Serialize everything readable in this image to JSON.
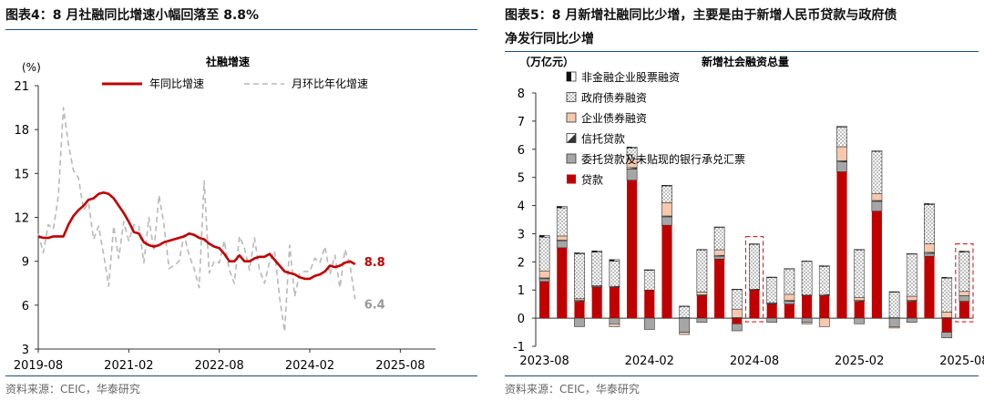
{
  "left": {
    "title": "图表4：8 月社融同比增速小幅回落至 8.8%",
    "source": "资料来源：CEIC，华泰研究"
  },
  "right": {
    "title_line1": "图表5：8 月新增社融同比少增，主要是由于新增人民币贷款与政府债",
    "title_line2": "净发行同比少增",
    "source": "资料来源：CEIC，华泰研究"
  },
  "chart_data": [
    {
      "type": "line",
      "title": "社融增速",
      "ylabel": "(%)",
      "ylim": [
        3,
        21
      ],
      "yticks": [
        3,
        6,
        9,
        12,
        15,
        18,
        21
      ],
      "xlim": [
        0,
        79
      ],
      "xticks": [
        {
          "i": 0,
          "label": "2019-08"
        },
        {
          "i": 18,
          "label": "2021-02"
        },
        {
          "i": 36,
          "label": "2022-08"
        },
        {
          "i": 54,
          "label": "2024-02"
        },
        {
          "i": 72,
          "label": "2025-08"
        }
      ],
      "series": [
        {
          "name": "年同比增速",
          "color": "#c00000",
          "style": "solid",
          "end_label": "8.8",
          "values": [
            10.7,
            10.6,
            10.6,
            10.7,
            10.7,
            10.7,
            11.5,
            12.1,
            12.5,
            12.8,
            13.2,
            13.3,
            13.6,
            13.7,
            13.6,
            13.3,
            12.8,
            12.3,
            11.7,
            11.0,
            10.9,
            10.3,
            10.1,
            10.0,
            10.1,
            10.3,
            10.4,
            10.5,
            10.6,
            10.7,
            10.9,
            10.8,
            10.6,
            10.5,
            10.2,
            10.0,
            9.9,
            9.5,
            9.0,
            9.0,
            9.4,
            9.0,
            9.0,
            9.2,
            9.3,
            9.3,
            9.5,
            9.1,
            8.7,
            8.3,
            8.2,
            8.1,
            7.9,
            7.8,
            7.8,
            8.0,
            8.1,
            8.3,
            8.7,
            8.6,
            8.7,
            8.9,
            9.0,
            8.8
          ]
        },
        {
          "name": "月环比年化增速",
          "color": "#b8b8b8",
          "style": "dashed",
          "end_label": "6.4",
          "values": [
            10.9,
            9.6,
            11.5,
            11.2,
            13.5,
            19.5,
            17.0,
            15.2,
            14.7,
            12.5,
            13.0,
            10.5,
            11.4,
            9.5,
            7.3,
            11.4,
            9.2,
            11.7,
            10.4,
            11.5,
            11.4,
            8.9,
            12.0,
            9.7,
            13.5,
            11.5,
            8.5,
            8.7,
            9.0,
            10.8,
            9.4,
            8.5,
            7.2,
            14.5,
            8.2,
            9.0,
            8.9,
            10.4,
            8.4,
            7.5,
            10.7,
            9.9,
            8.4,
            10.6,
            8.4,
            7.5,
            9.0,
            9.7,
            6.5,
            4.2,
            10.1,
            6.6,
            8.2,
            8.3,
            8.3,
            9.2,
            8.9,
            10.0,
            8.1,
            9.4,
            7.2,
            9.8,
            8.7,
            6.4
          ]
        }
      ]
    },
    {
      "type": "stacked_bar",
      "title": "新增社会融资总量",
      "ylabel": "（万亿元）",
      "ylim": [
        -1,
        8
      ],
      "yticks": [
        -1,
        0,
        1,
        2,
        3,
        4,
        5,
        6,
        7,
        8
      ],
      "categories": [
        "2023-08",
        "2023-09",
        "2023-10",
        "2023-11",
        "2023-12",
        "2024-01",
        "2024-02",
        "2024-03",
        "2024-04",
        "2024-05",
        "2024-06",
        "2024-07",
        "2024-08",
        "2024-09",
        "2024-10",
        "2024-11",
        "2024-12",
        "2025-01",
        "2025-02",
        "2025-03",
        "2025-04",
        "2025-05",
        "2025-06",
        "2025-07",
        "2025-08"
      ],
      "xtick_labels": [
        {
          "i": 0,
          "label": "2023-08"
        },
        {
          "i": 6,
          "label": "2024-02"
        },
        {
          "i": 12,
          "label": "2024-08"
        },
        {
          "i": 18,
          "label": "2025-02"
        },
        {
          "i": 24,
          "label": "2025-08"
        }
      ],
      "highlight": [
        12,
        24
      ],
      "series": [
        {
          "name": "非金融企业股票融资",
          "pattern": "half",
          "values": [
            0.06,
            0.05,
            0.03,
            0.04,
            0.05,
            0.03,
            0.02,
            0.02,
            0.01,
            0.01,
            0.01,
            0.01,
            0.01,
            0.01,
            0.01,
            0.01,
            0.02,
            0.02,
            0.01,
            0.01,
            0.02,
            0.01,
            0.03,
            0.03,
            0.03
          ]
        },
        {
          "name": "政府债券融资",
          "pattern": "dots",
          "values": [
            1.2,
            1.0,
            1.6,
            1.2,
            0.9,
            0.4,
            0.7,
            0.6,
            0.4,
            1.5,
            0.8,
            0.7,
            1.6,
            0.9,
            0.9,
            1.2,
            1.0,
            0.7,
            1.7,
            1.5,
            0.9,
            1.5,
            1.4,
            1.2,
            1.4
          ]
        },
        {
          "name": "企业债券融资",
          "pattern": "light",
          "values": [
            0.25,
            0.15,
            0.06,
            0.03,
            -0.1,
            0.3,
            0.0,
            0.47,
            -0.08,
            0.1,
            0.2,
            0.3,
            0.0,
            0.03,
            0.22,
            -0.05,
            -0.3,
            0.5,
            0.1,
            0.25,
            -0.05,
            0.15,
            0.3,
            0.2,
            0.15
          ]
        },
        {
          "name": "信托贷款",
          "pattern": "tri",
          "values": [
            0.03,
            0.02,
            0.03,
            0.02,
            0.03,
            0.05,
            0.0,
            0.03,
            0.02,
            0.03,
            0.03,
            0.02,
            0.03,
            0.02,
            0.03,
            0.02,
            0.04,
            0.04,
            0.03,
            0.03,
            0.02,
            0.03,
            0.04,
            0.02,
            0.0
          ]
        },
        {
          "name": "委托贷款及未贴现的银行承兑汇票",
          "pattern": "gray",
          "values": [
            0.1,
            0.25,
            -0.3,
            0.0,
            -0.2,
            0.4,
            -0.4,
            0.3,
            -0.5,
            -0.15,
            0.1,
            -0.25,
            0.0,
            -0.15,
            0.1,
            -0.15,
            0.0,
            0.35,
            -0.2,
            0.35,
            -0.3,
            -0.15,
            0.1,
            -0.2,
            0.2
          ]
        },
        {
          "name": "贷款",
          "pattern": "red",
          "values": [
            1.3,
            2.5,
            0.6,
            1.1,
            1.1,
            4.9,
            1.0,
            3.3,
            0.0,
            0.8,
            2.1,
            -0.2,
            1.0,
            0.5,
            0.5,
            0.8,
            0.8,
            5.2,
            0.6,
            3.8,
            0.0,
            0.6,
            2.2,
            -0.5,
            0.6
          ]
        }
      ]
    }
  ]
}
